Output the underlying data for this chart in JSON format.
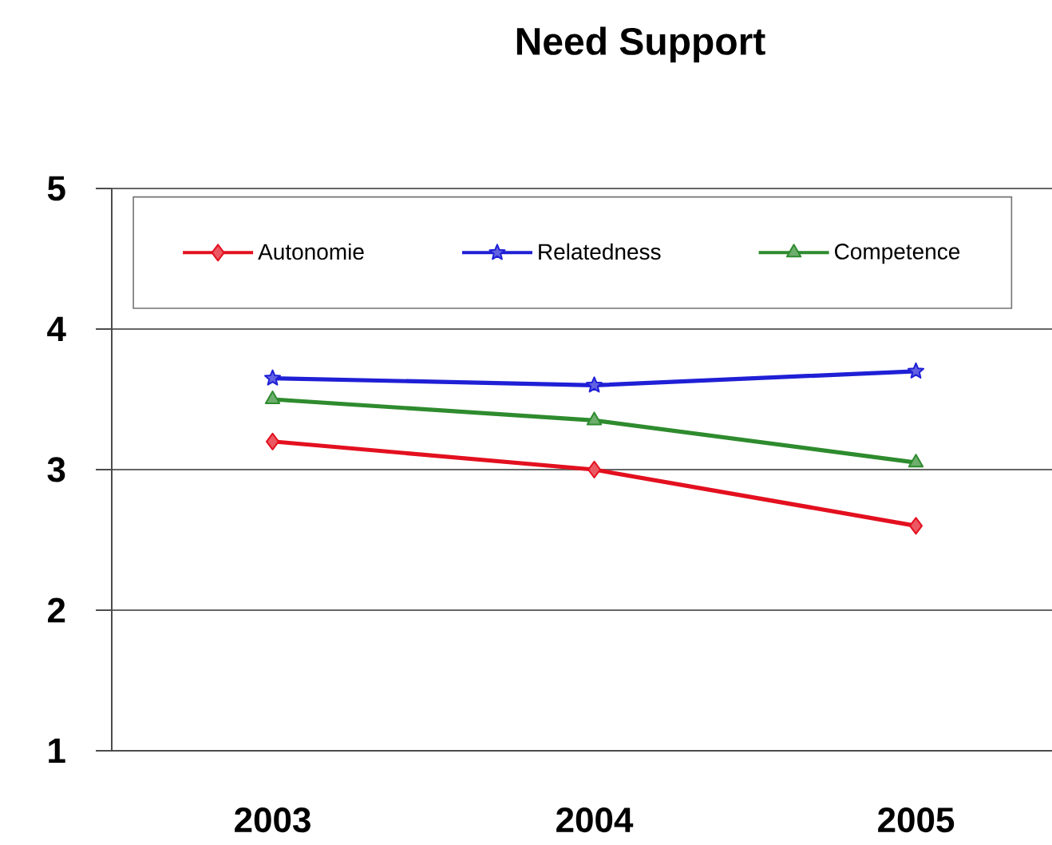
{
  "chart_data": {
    "type": "line",
    "title": "Need Support",
    "categories": [
      "2003",
      "2004",
      "2005"
    ],
    "series": [
      {
        "name": "Autonomie",
        "color": "#e3101f",
        "marker": "diamond",
        "values": [
          3.2,
          3.0,
          2.6
        ]
      },
      {
        "name": "Relatedness",
        "color": "#1f1fd6",
        "marker": "star",
        "values": [
          3.65,
          3.6,
          3.7
        ]
      },
      {
        "name": "Competence",
        "color": "#2e8b2e",
        "marker": "triangle",
        "values": [
          3.5,
          3.35,
          3.05
        ]
      }
    ],
    "ylim": [
      1,
      5
    ],
    "yticks": [
      1,
      2,
      3,
      4,
      5
    ],
    "grid": "y",
    "legend": "top",
    "line_style": "solid"
  }
}
